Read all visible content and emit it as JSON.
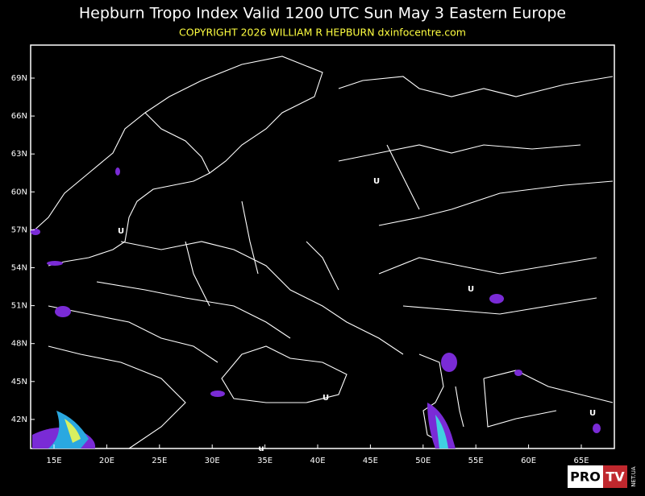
{
  "header": {
    "title": "Hepburn Tropo Index Valid 1200 UTC Sun May 3 Eastern Europe",
    "copyright": "COPYRIGHT 2026   WILLIAM R HEPBURN   dxinfocentre.com"
  },
  "map": {
    "latitude_labels": [
      "69N",
      "66N",
      "63N",
      "60N",
      "57N",
      "54N",
      "51N",
      "48N",
      "45N",
      "42N"
    ],
    "longitude_labels": [
      "15E",
      "20E",
      "25E",
      "30E",
      "35E",
      "40E",
      "45E",
      "50E",
      "55E",
      "60E",
      "65E"
    ],
    "markers": [
      "U",
      "U",
      "U",
      "U",
      "U",
      "u"
    ]
  },
  "logo": {
    "pro": "PRO",
    "tv": "TV",
    "site": "NET.UA"
  }
}
